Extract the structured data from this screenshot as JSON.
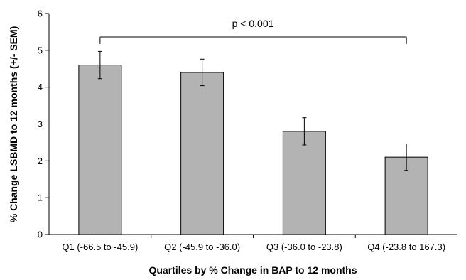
{
  "chart_data": {
    "type": "bar",
    "categories": [
      "Q1 (-66.5 to -45.9)",
      "Q2 (-45.9 to -36.0)",
      "Q3 (-36.0 to -23.8)",
      "Q4 (-23.8 to 167.3)"
    ],
    "values": [
      4.6,
      4.4,
      2.8,
      2.1
    ],
    "error": [
      0.37,
      0.36,
      0.37,
      0.36
    ],
    "xlabel": "Quartiles by % Change in BAP to 12 months",
    "ylabel": "% Change LSBMD to 12 months (+/- SEM)",
    "ylim": [
      0,
      6
    ],
    "yticks": [
      "0",
      "1",
      "2",
      "3",
      "4",
      "5",
      "6"
    ],
    "annotation": "p < 0.001",
    "grid": false,
    "bar_color": "#b3b3b3"
  }
}
